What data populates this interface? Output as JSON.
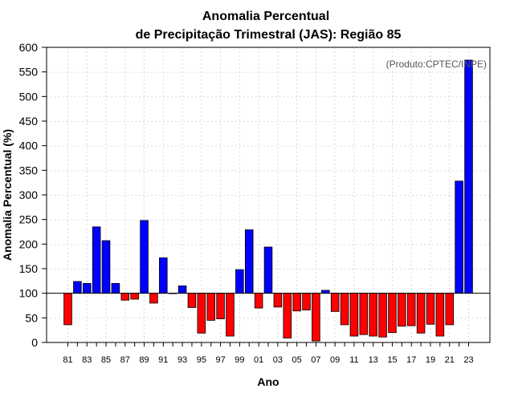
{
  "chart_data": {
    "type": "bar",
    "title_line1": "Anomalia Percentual",
    "title_line2": "de Precipitação Trimestral (JAS): Região 85",
    "xlabel": "Ano",
    "ylabel": "Anomalia Percentual (%)",
    "annotation": "(Produto:CPTEC/INPE)",
    "ylim": [
      0,
      600
    ],
    "yticks": [
      0,
      50,
      100,
      150,
      200,
      250,
      300,
      350,
      400,
      450,
      500,
      550,
      600
    ],
    "baseline": 100,
    "positive_color": "#0000ff",
    "negative_color": "#ff0000",
    "grid": true,
    "categories": [
      "81",
      "82",
      "83",
      "84",
      "85",
      "86",
      "87",
      "88",
      "89",
      "90",
      "91",
      "92",
      "93",
      "94",
      "95",
      "96",
      "97",
      "98",
      "99",
      "00",
      "01",
      "02",
      "03",
      "04",
      "05",
      "06",
      "07",
      "08",
      "09",
      "10",
      "11",
      "12",
      "13",
      "14",
      "15",
      "16",
      "17",
      "18",
      "19",
      "20",
      "21",
      "22",
      "23"
    ],
    "xtick_labels": [
      "81",
      "83",
      "85",
      "87",
      "89",
      "91",
      "93",
      "95",
      "97",
      "99",
      "01",
      "03",
      "05",
      "07",
      "09",
      "11",
      "13",
      "15",
      "17",
      "19",
      "21",
      "23"
    ],
    "values": [
      36,
      124,
      120,
      235,
      207,
      120,
      86,
      88,
      248,
      80,
      172,
      100,
      115,
      71,
      19,
      45,
      48,
      13,
      148,
      229,
      70,
      194,
      72,
      9,
      64,
      66,
      3,
      106,
      63,
      36,
      13,
      16,
      13,
      11,
      20,
      33,
      34,
      19,
      37,
      13,
      36,
      328,
      574
    ]
  }
}
